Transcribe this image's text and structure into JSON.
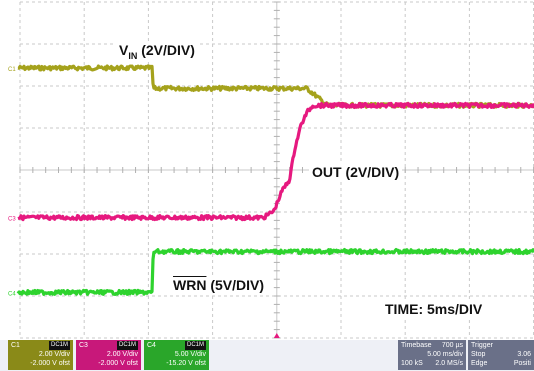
{
  "chart_data": {
    "type": "line",
    "xlim": [
      0,
      50
    ],
    "ylim": [
      -5,
      5
    ],
    "grid": true,
    "series": [
      {
        "name": "V_IN",
        "color": "#a5a21c",
        "x": [
          0,
          13,
          13.1,
          28,
          30,
          50
        ],
        "y": [
          3.0,
          3.0,
          2.4,
          2.4,
          1.9,
          1.9
        ]
      },
      {
        "name": "OUT",
        "color": "#e6197f",
        "x": [
          0,
          23.8,
          24.8,
          25.6,
          26.3,
          26.8,
          27.4,
          28.0,
          28.6,
          50
        ],
        "y": [
          -1.4,
          -1.4,
          -1.2,
          -0.6,
          -0.3,
          0.6,
          1.3,
          1.7,
          1.9,
          1.9
        ]
      },
      {
        "name": "WRN",
        "color": "#2ed32e",
        "x": [
          0,
          13,
          13.1,
          50
        ],
        "y": [
          -3.6,
          -3.6,
          -2.4,
          -2.4
        ]
      }
    ],
    "annotations": {
      "vin_main": "V",
      "vin_sub": "IN",
      "vin_rest": " (2V/DIV)",
      "out": "OUT (2V/DIV)",
      "wrn_over": "WRN",
      "wrn_rest": " (5V/DIV)",
      "time": "TIME: 5ms/DIV"
    }
  },
  "markers": {
    "c1": "C1",
    "c3": "C3",
    "c4": "C4"
  },
  "channels": [
    {
      "id": "C1",
      "tag": "DC1M",
      "scale": "2.00 V/div",
      "offset": "-2.000 V ofst",
      "color": "#a5a21c"
    },
    {
      "id": "C3",
      "tag": "DC1M",
      "scale": "2.00 V/div",
      "offset": "-2.000 V ofst",
      "color": "#e6197f"
    },
    {
      "id": "C4",
      "tag": "DC1M",
      "scale": "5.00 V/div",
      "offset": "-15.20 V ofst",
      "color": "#2ed32e"
    }
  ],
  "timebase": {
    "label": "Timebase",
    "value": "700 µs",
    "div": "5.00 ms/div",
    "samples": "100 kS",
    "rate": "2.0 MS/s"
  },
  "trigger": {
    "label": "Trigger",
    "mode": "Stop",
    "type": "Edge",
    "slope": "Positi",
    "level": "3.06"
  }
}
